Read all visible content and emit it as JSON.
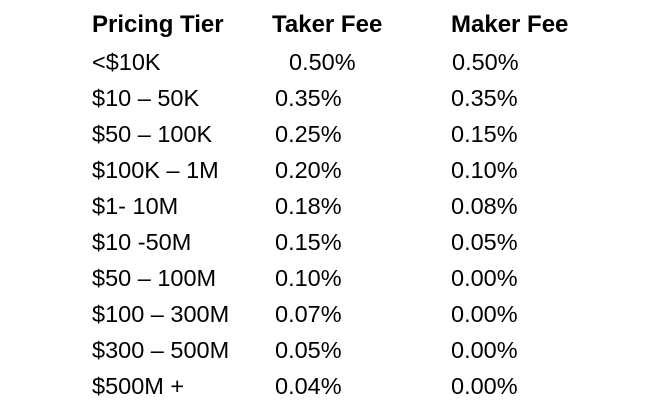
{
  "table": {
    "headers": [
      "Pricing Tier",
      "Taker Fee",
      "Maker Fee"
    ],
    "rows": [
      [
        "<$10K",
        "0.50%",
        "0.50%"
      ],
      [
        "$10 – 50K",
        "0.35%",
        "0.35%"
      ],
      [
        "$50 – 100K",
        "0.25%",
        "0.15%"
      ],
      [
        "$100K – 1M",
        "0.20%",
        "0.10%"
      ],
      [
        "$1- 10M",
        "0.18%",
        "0.08%"
      ],
      [
        "$10 -50M",
        "0.15%",
        "0.05%"
      ],
      [
        "$50 – 100M",
        "0.10%",
        "0.00%"
      ],
      [
        "$100 – 300M",
        "0.07%",
        "0.00%"
      ],
      [
        "$300 – 500M",
        "0.05%",
        "0.00%"
      ],
      [
        "$500M +",
        "0.04%",
        "0.00%"
      ]
    ]
  }
}
